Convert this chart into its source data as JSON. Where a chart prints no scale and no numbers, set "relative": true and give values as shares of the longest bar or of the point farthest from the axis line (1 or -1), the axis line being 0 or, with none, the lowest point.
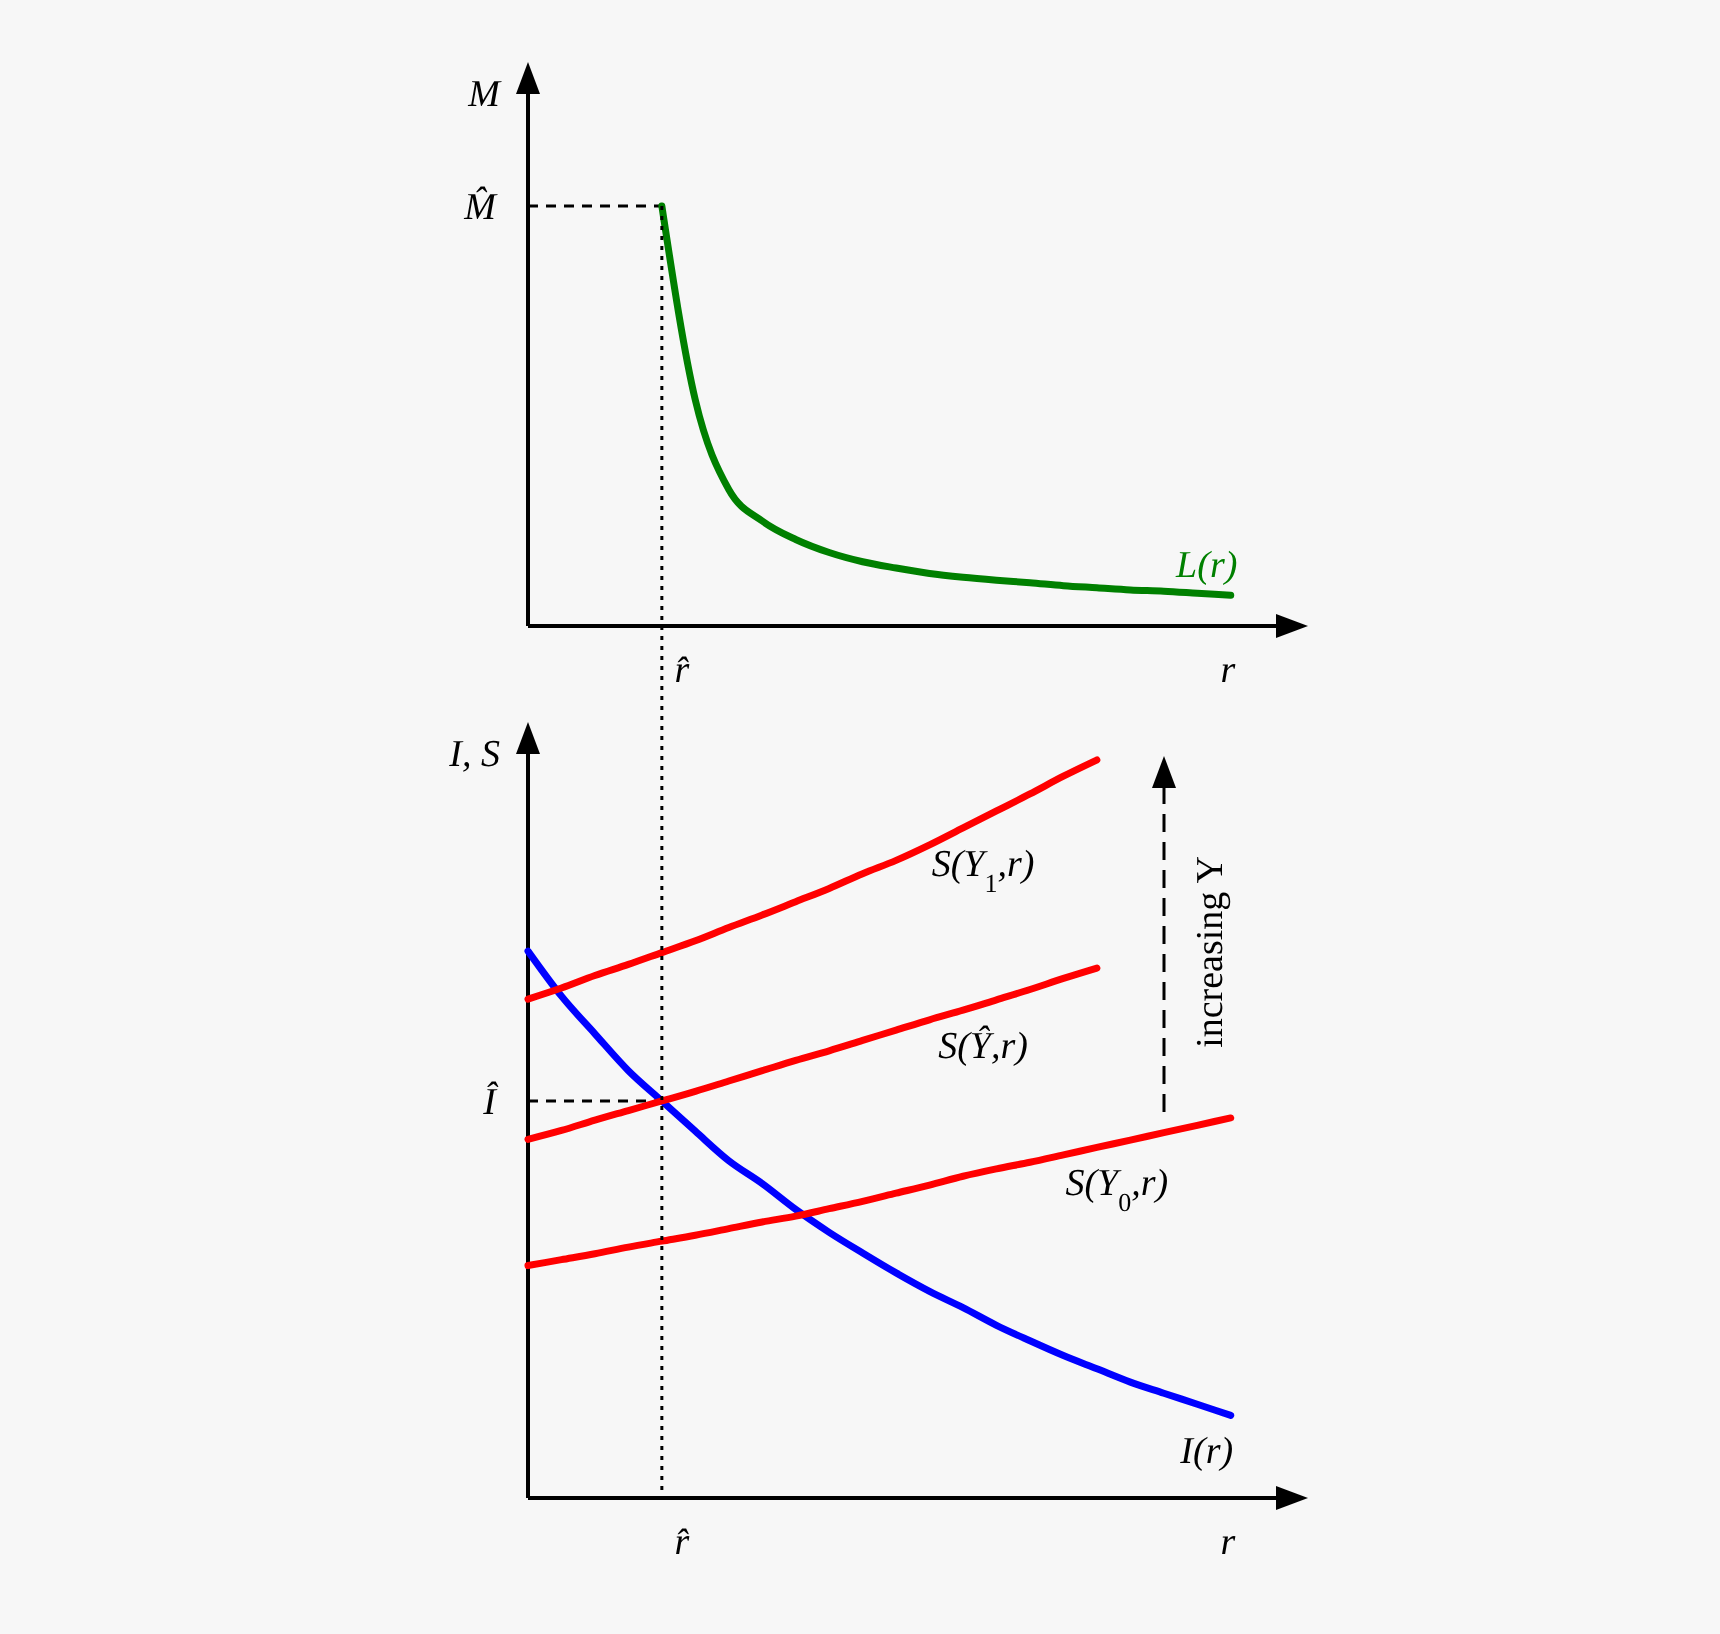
{
  "chart_data": [
    {
      "type": "line",
      "xlabel": "r",
      "ylabel": "M",
      "relative": true,
      "marker": "none",
      "categories": [
        null,
        null,
        null,
        null,
        null,
        null,
        null,
        null,
        null,
        null,
        null,
        null,
        null,
        null,
        null,
        null,
        null,
        null,
        null,
        null,
        null,
        null,
        null
      ],
      "series": [
        {
          "name": "L(r)",
          "color": "#008000",
          "values": [
            null,
            null,
            null,
            null,
            1,
            0.538,
            0.325,
            0.25,
            0.206,
            0.175,
            0.153,
            0.138,
            0.125,
            0.116,
            0.109,
            0.103,
            0.096,
            0.091,
            0.086,
            0.083,
            0.078,
            0.073,
            null
          ]
        }
      ],
      "ref_lines": [
        {
          "axis": "y",
          "value": 1,
          "label": "M̂",
          "line_style": "dashed",
          "color": "#000000"
        }
      ],
      "annotations": [
        "r̂"
      ]
    },
    {
      "type": "line",
      "xlabel": "r",
      "ylabel": "I, S",
      "relative": true,
      "marker": "none",
      "categories": [
        null,
        null,
        null,
        null,
        null,
        null,
        null,
        null,
        null,
        null,
        null,
        null,
        null,
        null,
        null,
        null,
        null,
        null,
        null,
        null,
        null,
        null,
        null
      ],
      "series": [
        {
          "name": "I(r)",
          "color": "#0000ff",
          "values": [
            0.741,
            0.68,
            0.629,
            0.579,
            0.538,
            0.497,
            0.457,
            0.426,
            0.391,
            0.36,
            0.332,
            0.305,
            0.28,
            0.258,
            0.234,
            0.213,
            0.193,
            0.175,
            0.157,
            0.142,
            0.127,
            0.112,
            null
          ]
        },
        {
          "name": "S(Y$_{0}$,r)",
          "color": "#ff0000",
          "values": [
            0.315,
            0.323,
            0.331,
            0.34,
            0.348,
            0.356,
            0.365,
            0.374,
            0.382,
            0.392,
            0.402,
            0.413,
            0.424,
            0.436,
            0.446,
            0.455,
            0.465,
            0.475,
            0.485,
            0.495,
            0.505,
            0.515,
            null
          ]
        },
        {
          "name": "S(Ŷ,r)",
          "color": "#ff0000",
          "values": [
            0.486,
            0.498,
            0.512,
            0.525,
            0.538,
            0.551,
            0.565,
            0.579,
            0.593,
            0.606,
            0.62,
            0.634,
            0.648,
            0.661,
            0.675,
            0.689,
            0.704,
            0.718,
            null,
            null,
            null,
            null,
            null
          ]
        },
        {
          "name": "S(Y$_{1}$,r)",
          "color": "#ff0000",
          "values": [
            0.676,
            0.691,
            0.708,
            0.723,
            0.739,
            0.755,
            0.773,
            0.79,
            0.808,
            0.826,
            0.846,
            0.864,
            0.885,
            0.908,
            0.931,
            0.954,
            0.978,
            1,
            null,
            null,
            null,
            null,
            null
          ]
        }
      ],
      "ref_lines": [
        {
          "axis": "y",
          "value": 0.538,
          "label": "Î",
          "line_style": "dashed",
          "color": "#000000"
        }
      ],
      "annotations": [
        "r̂",
        "increasing Y"
      ]
    }
  ]
}
